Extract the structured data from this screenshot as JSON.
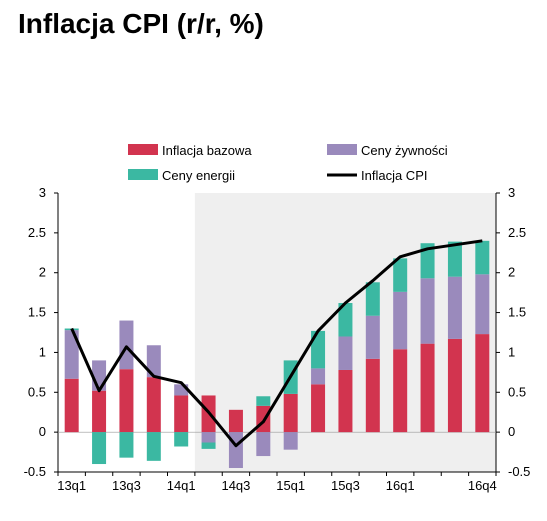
{
  "chart_data": {
    "type": "bar",
    "title": "Inflacja CPI (r/r, %)",
    "stacked": true,
    "categories": [
      "13q1",
      "13q2",
      "13q3",
      "13q4",
      "14q1",
      "14q2",
      "14q3",
      "14q4",
      "15q1",
      "15q2",
      "15q3",
      "15q4",
      "16q1",
      "16q2",
      "16q3",
      "16q4"
    ],
    "x_tick_labels": [
      "13q1",
      "13q3",
      "14q1",
      "14q3",
      "15q1",
      "15q3",
      "16q1",
      "16q4"
    ],
    "x_tick_label_categories": [
      "13q1",
      "13q3",
      "14q1",
      "14q3",
      "15q1",
      "15q3",
      "16q1",
      "16q4"
    ],
    "ylim": [
      -0.5,
      3
    ],
    "y_ticks": [
      "-0.5",
      "0",
      "0.5",
      "1",
      "1.5",
      "2",
      "2.5",
      "3"
    ],
    "y_tick_values": [
      -0.5,
      0,
      0.5,
      1,
      1.5,
      2,
      2.5,
      3
    ],
    "shaded_from_category": "14q2",
    "legend_position": "top",
    "series": [
      {
        "name": "Inflacja bazowa",
        "kind": "bar",
        "color": "#d2344f",
        "values": [
          0.67,
          0.52,
          0.79,
          0.69,
          0.46,
          0.46,
          0.28,
          0.33,
          0.48,
          0.6,
          0.78,
          0.92,
          1.04,
          1.11,
          1.17,
          1.23
        ]
      },
      {
        "name": "Ceny żywności",
        "kind": "bar",
        "color": "#9a8abc",
        "values": [
          0.61,
          0.38,
          0.61,
          0.4,
          0.14,
          -0.13,
          -0.45,
          -0.3,
          -0.22,
          0.2,
          0.42,
          0.54,
          0.72,
          0.82,
          0.78,
          0.75
        ]
      },
      {
        "name": "Ceny energii",
        "kind": "bar",
        "color": "#3bb8a2",
        "values": [
          0.02,
          -0.4,
          -0.32,
          -0.36,
          -0.18,
          -0.08,
          0.0,
          0.12,
          0.42,
          0.47,
          0.42,
          0.42,
          0.42,
          0.44,
          0.44,
          0.42
        ]
      },
      {
        "name": "Inflacja CPI",
        "kind": "line",
        "color": "#000000",
        "values": [
          1.3,
          0.52,
          1.07,
          0.7,
          0.62,
          0.25,
          -0.17,
          0.13,
          0.7,
          1.27,
          1.62,
          1.9,
          2.2,
          2.3,
          2.35,
          2.4
        ]
      }
    ]
  }
}
